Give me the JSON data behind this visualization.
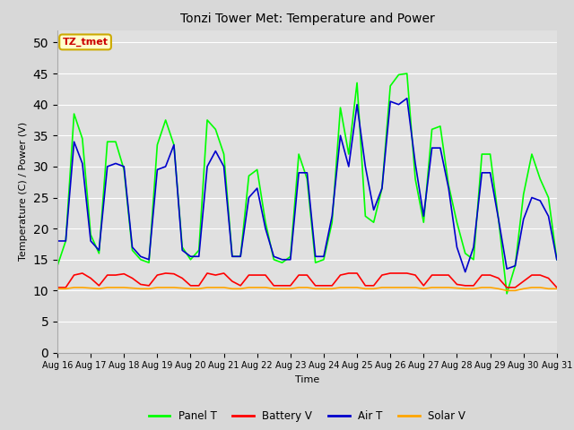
{
  "title": "Tonzi Tower Met: Temperature and Power",
  "xlabel": "Time",
  "ylabel": "Temperature (C) / Power (V)",
  "background_color": "#d8d8d8",
  "plot_bg_color": "#e0e0e0",
  "ylim": [
    0,
    52
  ],
  "yticks": [
    0,
    5,
    10,
    15,
    20,
    25,
    30,
    35,
    40,
    45,
    50
  ],
  "xtick_labels": [
    "Aug 16",
    "Aug 17",
    "Aug 18",
    "Aug 19",
    "Aug 20",
    "Aug 21",
    "Aug 22",
    "Aug 23",
    "Aug 24",
    "Aug 25",
    "Aug 26",
    "Aug 27",
    "Aug 28",
    "Aug 29",
    "Aug 30",
    "Aug 31"
  ],
  "legend_entries": [
    "Panel T",
    "Battery V",
    "Air T",
    "Solar V"
  ],
  "legend_colors": [
    "#00ff00",
    "#ff0000",
    "#0000cc",
    "#ffa500"
  ],
  "annotation_text": "TZ_tmet",
  "annotation_color": "#cc0000",
  "annotation_bg": "#ffffcc",
  "annotation_border": "#ccaa00",
  "panel_t": [
    14.0,
    18.0,
    38.5,
    34.5,
    19.0,
    16.0,
    34.0,
    34.0,
    29.5,
    16.5,
    15.0,
    14.5,
    33.5,
    37.5,
    33.5,
    17.0,
    15.0,
    16.5,
    37.5,
    36.0,
    32.0,
    15.5,
    15.5,
    28.5,
    29.5,
    21.0,
    15.0,
    14.5,
    15.5,
    32.0,
    28.0,
    14.5,
    15.0,
    21.0,
    39.5,
    32.0,
    43.5,
    22.0,
    21.0,
    26.5,
    43.0,
    44.8,
    45.0,
    28.0,
    21.0,
    36.0,
    36.5,
    27.0,
    21.0,
    16.0,
    15.0,
    32.0,
    32.0,
    21.5,
    9.5,
    14.0,
    25.5,
    32.0,
    28.0,
    25.0,
    15.0
  ],
  "battery_v": [
    10.5,
    10.5,
    12.5,
    12.8,
    12.0,
    10.8,
    12.5,
    12.5,
    12.7,
    12.0,
    11.0,
    10.8,
    12.5,
    12.8,
    12.7,
    12.0,
    10.8,
    10.8,
    12.8,
    12.5,
    12.8,
    11.5,
    10.8,
    12.5,
    12.5,
    12.5,
    10.8,
    10.8,
    10.8,
    12.5,
    12.5,
    10.8,
    10.8,
    10.8,
    12.5,
    12.8,
    12.8,
    10.8,
    10.8,
    12.5,
    12.8,
    12.8,
    12.8,
    12.5,
    10.8,
    12.5,
    12.5,
    12.5,
    11.0,
    10.8,
    10.8,
    12.5,
    12.5,
    12.0,
    10.5,
    10.5,
    11.5,
    12.5,
    12.5,
    12.0,
    10.5
  ],
  "air_t": [
    18.0,
    18.0,
    34.0,
    30.5,
    18.0,
    16.5,
    30.0,
    30.5,
    30.0,
    17.0,
    15.5,
    15.0,
    29.5,
    30.0,
    33.5,
    16.5,
    15.5,
    15.5,
    30.0,
    32.5,
    30.0,
    15.5,
    15.5,
    25.0,
    26.5,
    20.0,
    15.5,
    15.0,
    15.0,
    29.0,
    29.0,
    15.5,
    15.5,
    22.0,
    35.0,
    30.0,
    40.0,
    30.0,
    23.0,
    26.5,
    40.5,
    40.0,
    41.0,
    30.5,
    22.0,
    33.0,
    33.0,
    26.5,
    17.0,
    13.0,
    17.0,
    29.0,
    29.0,
    21.5,
    13.5,
    14.0,
    21.5,
    25.0,
    24.5,
    22.0,
    15.0
  ],
  "solar_v": [
    10.3,
    10.3,
    10.5,
    10.5,
    10.4,
    10.3,
    10.5,
    10.5,
    10.5,
    10.4,
    10.3,
    10.3,
    10.5,
    10.5,
    10.5,
    10.4,
    10.3,
    10.3,
    10.5,
    10.5,
    10.5,
    10.3,
    10.3,
    10.5,
    10.5,
    10.5,
    10.3,
    10.3,
    10.3,
    10.5,
    10.5,
    10.3,
    10.3,
    10.3,
    10.5,
    10.5,
    10.5,
    10.3,
    10.3,
    10.5,
    10.5,
    10.5,
    10.5,
    10.5,
    10.3,
    10.5,
    10.5,
    10.5,
    10.4,
    10.3,
    10.3,
    10.5,
    10.5,
    10.3,
    10.0,
    10.0,
    10.3,
    10.5,
    10.5,
    10.3,
    10.3
  ]
}
